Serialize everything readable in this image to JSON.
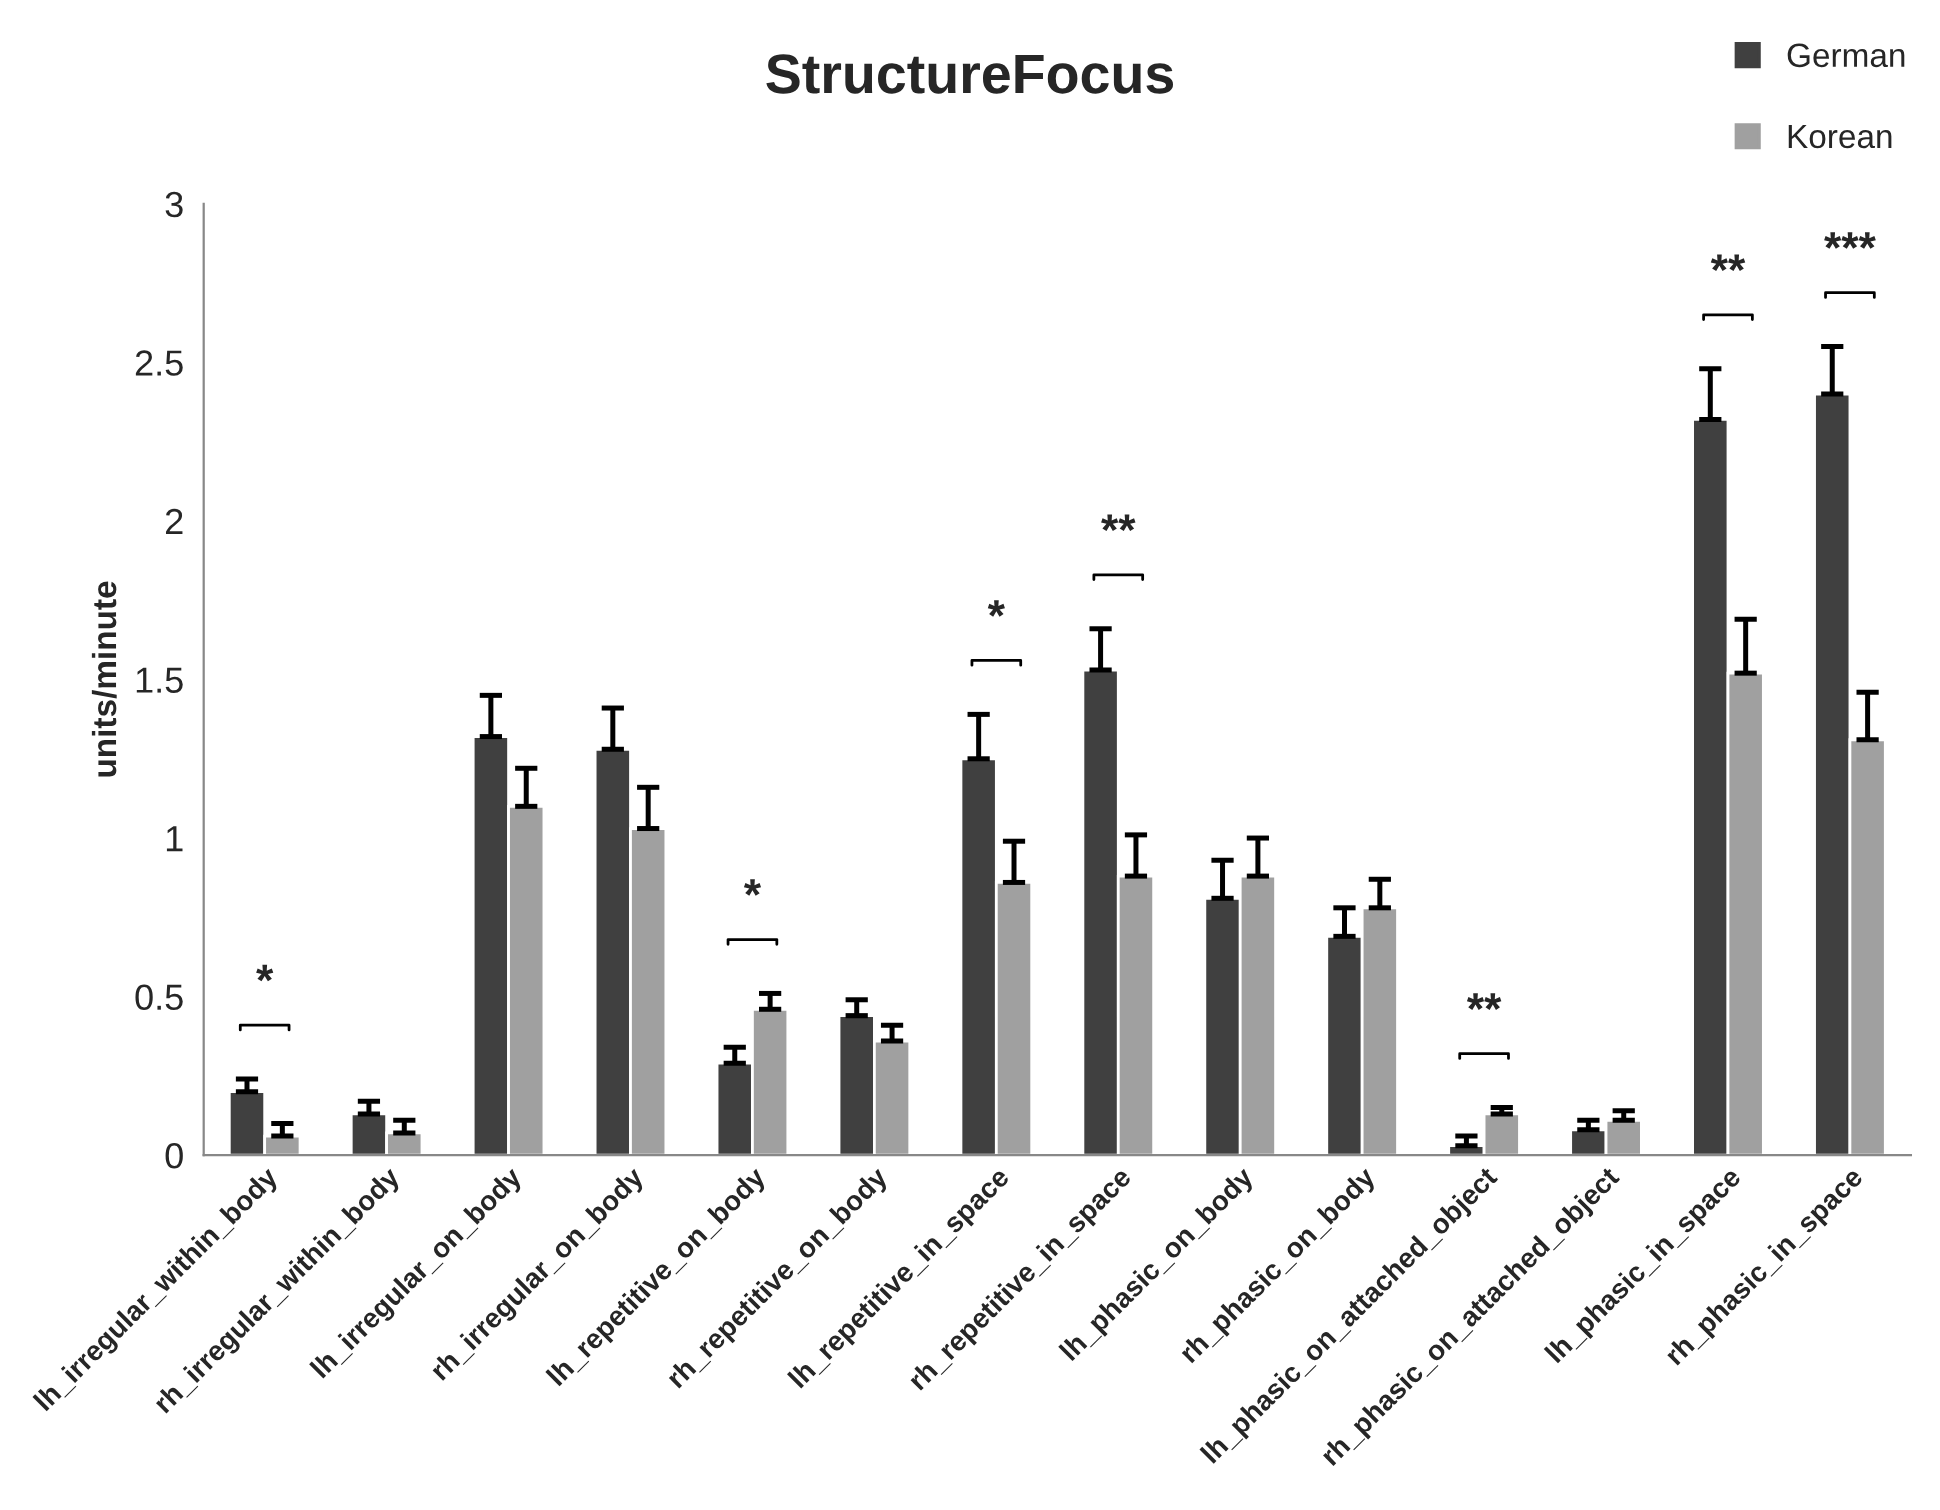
{
  "chart_data": {
    "type": "bar",
    "title": "StructureFocus",
    "ylabel": "units/minute",
    "categories": [
      "lh_irregular_within_body",
      "rh_irregular_within_body",
      "lh_irregular_on_body",
      "rh_irregular_on_body",
      "lh_repetitive_on_body",
      "rh_repetitive_on_body",
      "lh_repetitive_in_space",
      "rh_repetitive_in_space",
      "lh_phasic_on_body",
      "rh_phasic_on_body",
      "lh_phasic_on_attached_object",
      "rh_phasic_on_attached_object",
      "lh_phasic_in_space",
      "rh_phasic_in_space"
    ],
    "series": [
      {
        "name": "German",
        "color": "#404040",
        "values": [
          0.2,
          0.13,
          1.32,
          1.28,
          0.29,
          0.44,
          1.25,
          1.53,
          0.81,
          0.69,
          0.03,
          0.08,
          2.32,
          2.4
        ],
        "errors": [
          [
            0.2,
            0.24
          ],
          [
            0.13,
            0.17
          ],
          [
            1.32,
            1.45
          ],
          [
            1.28,
            1.41
          ],
          [
            0.29,
            0.34
          ],
          [
            0.44,
            0.49
          ],
          [
            1.25,
            1.39
          ],
          [
            1.53,
            1.66
          ],
          [
            0.81,
            0.93
          ],
          [
            0.69,
            0.78
          ],
          [
            0.03,
            0.06
          ],
          [
            0.08,
            0.11
          ],
          [
            2.32,
            2.48
          ],
          [
            2.4,
            2.55
          ]
        ]
      },
      {
        "name": "Korean",
        "color": "#a0a0a0",
        "values": [
          0.06,
          0.07,
          1.1,
          1.03,
          0.46,
          0.36,
          0.86,
          0.88,
          0.88,
          0.78,
          0.13,
          0.11,
          1.52,
          1.31
        ],
        "errors": [
          [
            0.06,
            0.1
          ],
          [
            0.07,
            0.11
          ],
          [
            1.1,
            1.22
          ],
          [
            1.03,
            1.16
          ],
          [
            0.46,
            0.51
          ],
          [
            0.36,
            0.41
          ],
          [
            0.86,
            0.99
          ],
          [
            0.88,
            1.01
          ],
          [
            0.88,
            1.0
          ],
          [
            0.78,
            0.87
          ],
          [
            0.13,
            0.15
          ],
          [
            0.11,
            0.14
          ],
          [
            1.52,
            1.69
          ],
          [
            1.31,
            1.46
          ]
        ]
      }
    ],
    "ylim": [
      0,
      3
    ],
    "yticks": [
      0,
      0.5,
      1,
      1.5,
      2,
      2.5,
      3
    ],
    "grid": false,
    "legend": "top right",
    "annotations": [
      "*",
      "*",
      "*",
      "**",
      "**",
      "**",
      "***"
    ]
  }
}
